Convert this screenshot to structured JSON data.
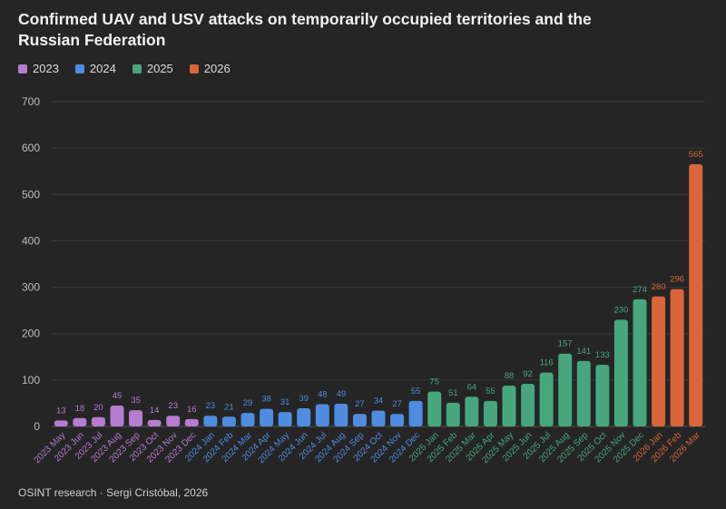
{
  "chart_data": {
    "type": "bar",
    "title": "Confirmed UAV and USV attacks on temporarily occupied territories and the Russian Federation",
    "ylim": [
      0,
      700
    ],
    "yticks": [
      0,
      100,
      200,
      300,
      400,
      500,
      600,
      700
    ],
    "grid": true,
    "legend_position": "top-left",
    "legend": [
      {
        "name": "2023",
        "color": "#b57ccf"
      },
      {
        "name": "2024",
        "color": "#4f8ce0"
      },
      {
        "name": "2025",
        "color": "#47a67d"
      },
      {
        "name": "2026",
        "color": "#d9653a"
      }
    ],
    "categories": [
      "2023 May",
      "2023 Jun",
      "2023 Jul",
      "2023 Aug",
      "2023 Sep",
      "2023 Oct",
      "2023 Nov",
      "2023 Dec",
      "2024 Jan",
      "2024 Feb",
      "2024 Mar",
      "2024 Apr",
      "2024 May",
      "2024 Jun",
      "2024 Jul",
      "2024 Aug",
      "2024 Sep",
      "2024 Oct",
      "2024 Nov",
      "2024 Dec",
      "2025 Jan",
      "2025 Feb",
      "2025 Mar",
      "2025 Apr",
      "2025 May",
      "2025 Jun",
      "2025 Jul",
      "2025 Aug",
      "2025 Sep",
      "2025 Oct",
      "2025 Nov",
      "2025 Dec",
      "2026 Jan",
      "2026 Feb",
      "2026 Mar"
    ],
    "values": [
      13,
      18,
      20,
      45,
      35,
      14,
      23,
      16,
      23,
      21,
      29,
      38,
      31,
      39,
      48,
      49,
      27,
      34,
      27,
      55,
      75,
      51,
      64,
      55,
      88,
      92,
      116,
      157,
      141,
      133,
      230,
      274,
      280,
      296,
      565
    ],
    "series_group": [
      0,
      0,
      0,
      0,
      0,
      0,
      0,
      0,
      1,
      1,
      1,
      1,
      1,
      1,
      1,
      1,
      1,
      1,
      1,
      1,
      2,
      2,
      2,
      2,
      2,
      2,
      2,
      2,
      2,
      2,
      2,
      2,
      3,
      3,
      3
    ]
  },
  "footer": "OSINT research · Sergi Cristóbal, 2026"
}
